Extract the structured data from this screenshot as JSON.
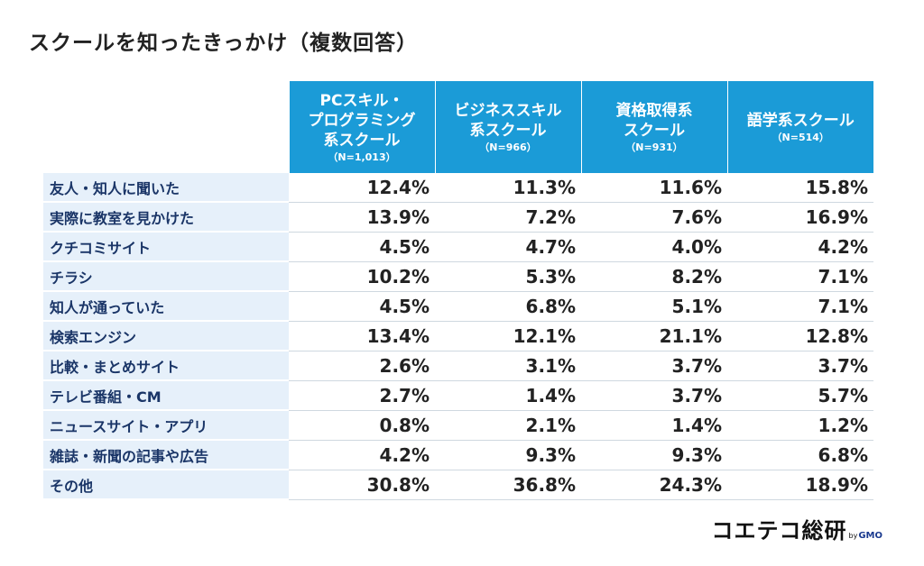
{
  "page": {
    "title": "スクールを知ったきっかけ（複数回答）"
  },
  "colors": {
    "header_bg": "#1b9bd7",
    "row_label_bg": "#e6f0fa",
    "row_label_text": "#1a3567"
  },
  "chart_data": {
    "type": "table",
    "title": "スクールを知ったきっかけ（複数回答）",
    "columns": [
      {
        "label": "PCスキル・\nプログラミング\n系スクール",
        "n": "（N=1,013）"
      },
      {
        "label": "ビジネススキル\n系スクール",
        "n": "（N=966）"
      },
      {
        "label": "資格取得系\nスクール",
        "n": "（N=931）"
      },
      {
        "label": "語学系スクール",
        "n": "（N=514）"
      }
    ],
    "rows": [
      {
        "label": "友人・知人に聞いた",
        "values": [
          "12.4%",
          "11.3%",
          "11.6%",
          "15.8%"
        ]
      },
      {
        "label": "実際に教室を見かけた",
        "values": [
          "13.9%",
          "7.2%",
          "7.6%",
          "16.9%"
        ]
      },
      {
        "label": "クチコミサイト",
        "values": [
          "4.5%",
          "4.7%",
          "4.0%",
          "4.2%"
        ]
      },
      {
        "label": "チラシ",
        "values": [
          "10.2%",
          "5.3%",
          "8.2%",
          "7.1%"
        ]
      },
      {
        "label": "知人が通っていた",
        "values": [
          "4.5%",
          "6.8%",
          "5.1%",
          "7.1%"
        ]
      },
      {
        "label": "検索エンジン",
        "values": [
          "13.4%",
          "12.1%",
          "21.1%",
          "12.8%"
        ]
      },
      {
        "label": "比較・まとめサイト",
        "values": [
          "2.6%",
          "3.1%",
          "3.7%",
          "3.7%"
        ]
      },
      {
        "label": "テレビ番組・CM",
        "values": [
          "2.7%",
          "1.4%",
          "3.7%",
          "5.7%"
        ]
      },
      {
        "label": "ニュースサイト・アプリ",
        "values": [
          "0.8%",
          "2.1%",
          "1.4%",
          "1.2%"
        ]
      },
      {
        "label": "雑誌・新聞の記事や広告",
        "values": [
          "4.2%",
          "9.3%",
          "9.3%",
          "6.8%"
        ]
      },
      {
        "label": "その他",
        "values": [
          "30.8%",
          "36.8%",
          "24.3%",
          "18.9%"
        ]
      }
    ]
  },
  "brand": {
    "name": "コエテコ総研",
    "by": "by",
    "company": "GMO"
  }
}
